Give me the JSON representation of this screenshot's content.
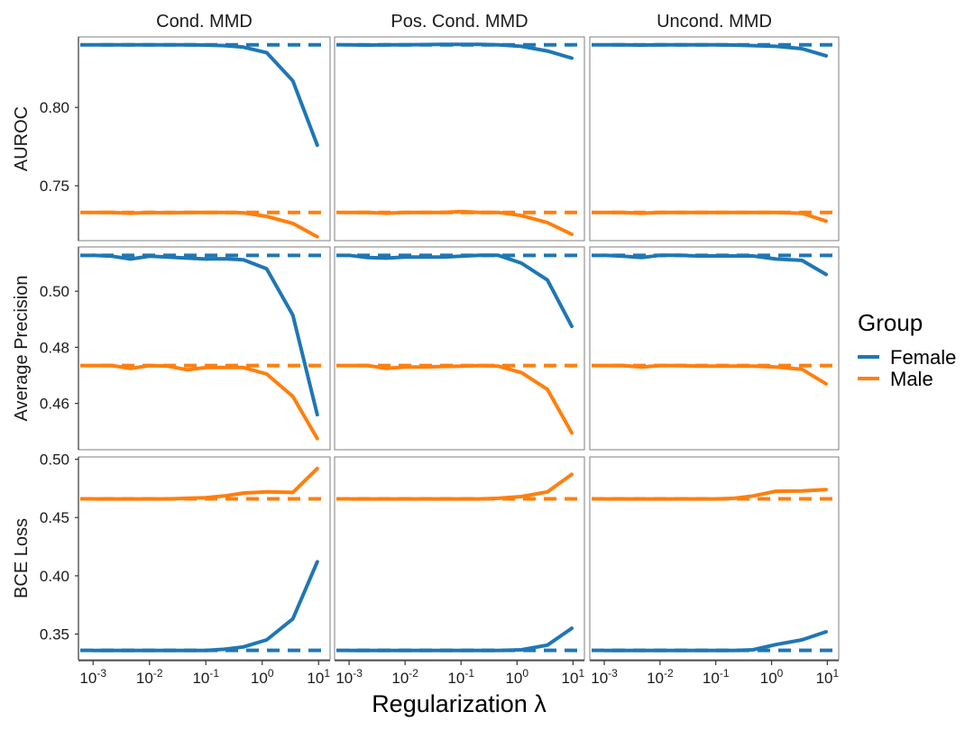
{
  "chart_data": {
    "type": "line",
    "layout": "facet-grid 3x3",
    "columns": [
      "Cond. MMD",
      "Pos. Cond. MMD",
      "Uncond. MMD"
    ],
    "rows": [
      {
        "label": "AUROC",
        "ylim": [
          0.715,
          0.845
        ],
        "ticks": [
          0.75,
          0.8
        ]
      },
      {
        "label": "Average Precision",
        "ylim": [
          0.4435,
          0.5158
        ],
        "ticks": [
          0.46,
          0.48,
          0.5
        ]
      },
      {
        "label": "BCE Loss",
        "ylim": [
          0.328,
          0.502
        ],
        "ticks": [
          0.35,
          0.4,
          0.45,
          0.5
        ]
      }
    ],
    "x": [
      0.001,
      0.00215,
      0.00464,
      0.01,
      0.0215,
      0.0464,
      0.1,
      0.215,
      0.464,
      1.2,
      3.5,
      9.5
    ],
    "x_scale": "log10",
    "xlim": [
      0.00055,
      16
    ],
    "x_ticks": [
      {
        "value": 0.001,
        "base": "10",
        "exp": "-3"
      },
      {
        "value": 0.01,
        "base": "10",
        "exp": "-2"
      },
      {
        "value": 0.1,
        "base": "10",
        "exp": "-1"
      },
      {
        "value": 1,
        "base": "10",
        "exp": "0"
      },
      {
        "value": 10,
        "base": "10",
        "exp": "1"
      }
    ],
    "xlabel": "Regularization λ",
    "legend": {
      "title": "Group",
      "position": "right",
      "entries": [
        "Female",
        "Male"
      ]
    },
    "colors": {
      "Female": "#1f77b4",
      "Male": "#ff7f0e"
    },
    "baseline_style": "dashed horizontal reference line per group",
    "panels": [
      {
        "row": 0,
        "col": 0,
        "series": [
          {
            "name": "Female",
            "baseline": 0.84,
            "values": [
              0.84,
              0.84,
              0.84,
              0.84,
              0.84,
              0.84,
              0.8398,
              0.8395,
              0.8385,
              0.835,
              0.817,
              0.776
            ]
          },
          {
            "name": "Male",
            "baseline": 0.733,
            "values": [
              0.733,
              0.733,
              0.7325,
              0.733,
              0.7328,
              0.733,
              0.733,
              0.733,
              0.7328,
              0.7305,
              0.726,
              0.7175
            ]
          }
        ]
      },
      {
        "row": 0,
        "col": 1,
        "series": [
          {
            "name": "Female",
            "baseline": 0.84,
            "values": [
              0.84,
              0.8398,
              0.84,
              0.84,
              0.8401,
              0.8402,
              0.8402,
              0.8402,
              0.84,
              0.839,
              0.836,
              0.8315
            ]
          },
          {
            "name": "Male",
            "baseline": 0.733,
            "values": [
              0.733,
              0.733,
              0.7325,
              0.733,
              0.733,
              0.733,
              0.7335,
              0.733,
              0.733,
              0.731,
              0.7265,
              0.719
            ]
          }
        ]
      },
      {
        "row": 0,
        "col": 2,
        "series": [
          {
            "name": "Female",
            "baseline": 0.84,
            "values": [
              0.84,
              0.84,
              0.8398,
              0.84,
              0.84,
              0.84,
              0.84,
              0.8398,
              0.8395,
              0.839,
              0.8375,
              0.833
            ]
          },
          {
            "name": "Male",
            "baseline": 0.733,
            "values": [
              0.733,
              0.733,
              0.7325,
              0.733,
              0.733,
              0.733,
              0.733,
              0.733,
              0.733,
              0.733,
              0.7325,
              0.7275
            ]
          }
        ]
      },
      {
        "row": 1,
        "col": 0,
        "series": [
          {
            "name": "Female",
            "baseline": 0.5128,
            "values": [
              0.5128,
              0.5125,
              0.5115,
              0.5125,
              0.5122,
              0.5118,
              0.5115,
              0.5116,
              0.5112,
              0.508,
              0.4915,
              0.456
            ]
          },
          {
            "name": "Male",
            "baseline": 0.4735,
            "values": [
              0.4735,
              0.4735,
              0.4725,
              0.4735,
              0.4733,
              0.472,
              0.4728,
              0.4728,
              0.4728,
              0.4705,
              0.4625,
              0.4475
            ]
          }
        ]
      },
      {
        "row": 1,
        "col": 1,
        "series": [
          {
            "name": "Female",
            "baseline": 0.5128,
            "values": [
              0.5128,
              0.512,
              0.5118,
              0.5122,
              0.5122,
              0.5122,
              0.5125,
              0.5128,
              0.5128,
              0.51,
              0.504,
              0.4875
            ]
          },
          {
            "name": "Male",
            "baseline": 0.4735,
            "values": [
              0.4735,
              0.4735,
              0.4725,
              0.473,
              0.473,
              0.4732,
              0.4733,
              0.4735,
              0.4733,
              0.471,
              0.465,
              0.4495
            ]
          }
        ]
      },
      {
        "row": 1,
        "col": 2,
        "series": [
          {
            "name": "Female",
            "baseline": 0.5128,
            "values": [
              0.5128,
              0.5125,
              0.512,
              0.5128,
              0.5128,
              0.5126,
              0.5126,
              0.5126,
              0.5126,
              0.5115,
              0.511,
              0.506
            ]
          },
          {
            "name": "Male",
            "baseline": 0.4735,
            "values": [
              0.4735,
              0.4735,
              0.473,
              0.4735,
              0.4735,
              0.4733,
              0.4733,
              0.4733,
              0.4733,
              0.473,
              0.4722,
              0.467
            ]
          }
        ]
      },
      {
        "row": 2,
        "col": 0,
        "series": [
          {
            "name": "Female",
            "baseline": 0.336,
            "values": [
              0.336,
              0.336,
              0.336,
              0.336,
              0.336,
              0.336,
              0.336,
              0.337,
              0.339,
              0.345,
              0.363,
              0.412
            ]
          },
          {
            "name": "Male",
            "baseline": 0.466,
            "values": [
              0.466,
              0.466,
              0.466,
              0.466,
              0.466,
              0.4665,
              0.467,
              0.4685,
              0.471,
              0.472,
              0.4715,
              0.492
            ]
          }
        ]
      },
      {
        "row": 2,
        "col": 1,
        "series": [
          {
            "name": "Female",
            "baseline": 0.336,
            "values": [
              0.336,
              0.336,
              0.336,
              0.336,
              0.336,
              0.336,
              0.336,
              0.336,
              0.336,
              0.3365,
              0.3405,
              0.355
            ]
          },
          {
            "name": "Male",
            "baseline": 0.466,
            "values": [
              0.466,
              0.466,
              0.466,
              0.466,
              0.466,
              0.466,
              0.466,
              0.466,
              0.4665,
              0.468,
              0.472,
              0.487
            ]
          }
        ]
      },
      {
        "row": 2,
        "col": 2,
        "series": [
          {
            "name": "Female",
            "baseline": 0.336,
            "values": [
              0.336,
              0.336,
              0.336,
              0.336,
              0.336,
              0.336,
              0.336,
              0.336,
              0.3365,
              0.341,
              0.345,
              0.352
            ]
          },
          {
            "name": "Male",
            "baseline": 0.466,
            "values": [
              0.466,
              0.466,
              0.466,
              0.466,
              0.466,
              0.466,
              0.466,
              0.4665,
              0.4685,
              0.4725,
              0.4728,
              0.474
            ]
          }
        ]
      }
    ]
  }
}
